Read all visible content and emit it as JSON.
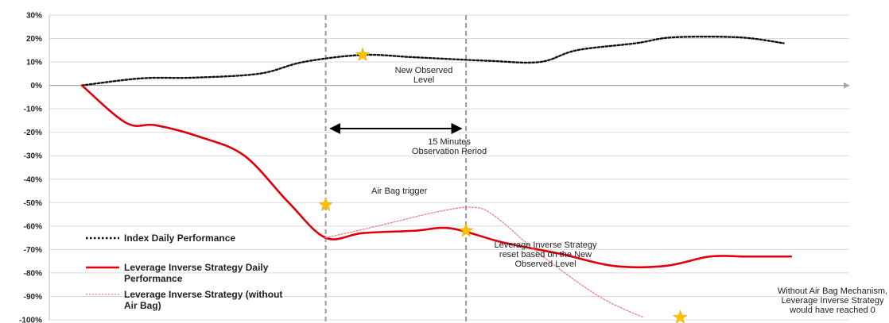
{
  "chart_data": {
    "type": "line",
    "title": "",
    "xlabel": "",
    "ylabel": "",
    "ylim": [
      -100,
      30
    ],
    "y_ticks": [
      "30%",
      "20%",
      "10%",
      "0%",
      "-10%",
      "-20%",
      "-30%",
      "-40%",
      "-50%",
      "-60%",
      "-70%",
      "-80%",
      "-90%",
      "-100%"
    ],
    "y_tick_values": [
      30,
      20,
      10,
      0,
      -10,
      -20,
      -30,
      -40,
      -50,
      -60,
      -70,
      -80,
      -90,
      -100
    ],
    "xlim": [
      0,
      100
    ],
    "grid": true,
    "legend_position": "bottom-left",
    "series": [
      {
        "name": "Index Daily Performance",
        "style": "dotted",
        "color": "#111111",
        "x": [
          0,
          8,
          15,
          24,
          30,
          38,
          45,
          55,
          62,
          67,
          75,
          80,
          89,
          95
        ],
        "y": [
          0,
          3,
          3.3,
          5,
          10,
          13,
          12,
          10.5,
          10,
          15,
          18,
          20.5,
          20.5,
          18
        ]
      },
      {
        "name": "Leverage Inverse Strategy Daily Performance",
        "style": "solid",
        "color": "#e0000b",
        "x": [
          0,
          6,
          10,
          16,
          22,
          28,
          33,
          38,
          45,
          50,
          57,
          65,
          72,
          79,
          85,
          90,
          96
        ],
        "y": [
          0,
          -16,
          -17,
          -22,
          -30,
          -50,
          -65,
          -63,
          -62,
          -61,
          -67,
          -72,
          -77,
          -77,
          -73,
          -73,
          -73
        ]
      },
      {
        "name": "Leverage Inverse Strategy (without Air Bag)",
        "style": "dotted",
        "color": "#f08080",
        "x": [
          33,
          40,
          48,
          53,
          56,
          62,
          70,
          76
        ],
        "y": [
          -65,
          -60,
          -54,
          -52,
          -56,
          -72,
          -90,
          -99
        ]
      }
    ],
    "vlines": [
      33,
      52
    ],
    "markers": [
      {
        "x": 38,
        "y": 13,
        "label": "New Observed Level"
      },
      {
        "x": 33,
        "y": -51,
        "label": "Air Bag trigger"
      },
      {
        "x": 52,
        "y": -62,
        "label": "Leverage Inverse Strategy reset based on the New Observed Level"
      },
      {
        "x": 81,
        "y": -99,
        "label": "Without Air Bag Mechanism, Leverage Inverse Strategy would have reached 0"
      }
    ],
    "annotations": {
      "new_observed": [
        "New Observed",
        "Level"
      ],
      "observation": [
        "15 Minutes",
        "Observation Period"
      ],
      "air_bag": "Air Bag trigger",
      "reset": [
        "Leverage Inverse Strategy",
        "reset based on the New",
        "Observed Level"
      ],
      "without": [
        "Without Air Bag Mechanism,",
        "Leverage Inverse Strategy",
        "would have reached 0"
      ]
    },
    "legend": [
      {
        "lines": [
          "Index Daily Performance"
        ],
        "style": "dotted",
        "color": "#111111"
      },
      {
        "lines": [
          "Leverage Inverse Strategy Daily",
          "Performance"
        ],
        "style": "solid",
        "color": "#e0000b"
      },
      {
        "lines": [
          "Leverage Inverse Strategy (without",
          "Air Bag)"
        ],
        "style": "dotted",
        "color": "#f08080"
      }
    ]
  }
}
